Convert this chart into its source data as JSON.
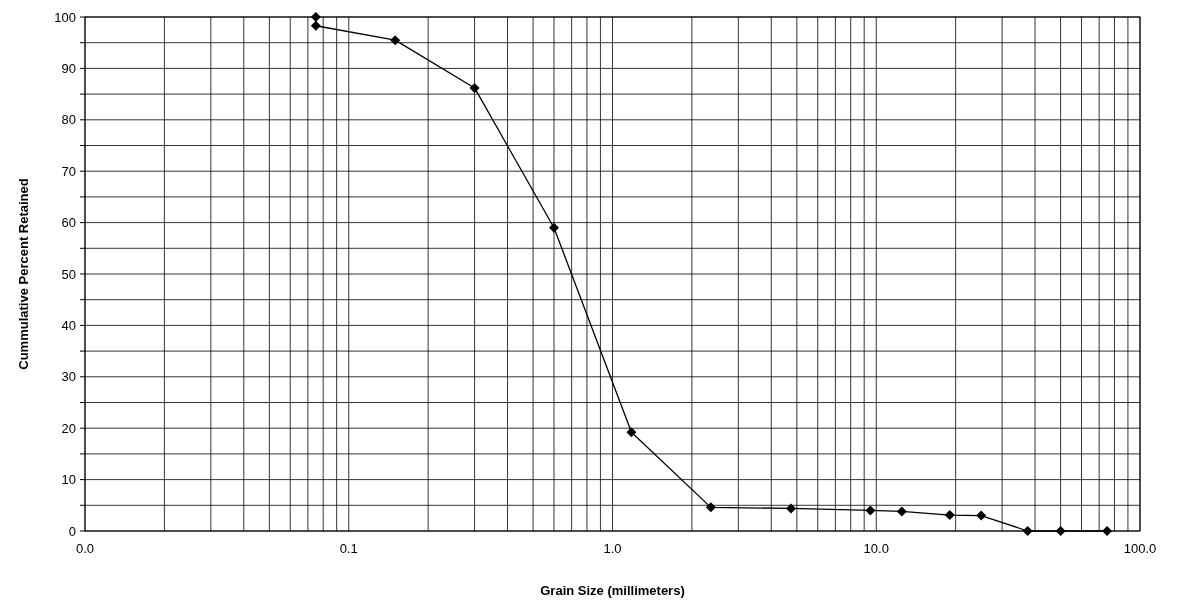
{
  "chart_data": {
    "type": "line",
    "xlabel": "Grain Size (millimeters)",
    "ylabel": "Cummulative Percent Retained",
    "log": "x",
    "grid": true,
    "marker": "diamond",
    "line_style": "solid",
    "xlim": [
      0.01,
      100
    ],
    "ylim": [
      0,
      100
    ],
    "xticks": [
      {
        "value": 0.01,
        "label": "0.0"
      },
      {
        "value": 0.02,
        "label": null
      },
      {
        "value": 0.03,
        "label": null
      },
      {
        "value": 0.04,
        "label": null
      },
      {
        "value": 0.05,
        "label": null
      },
      {
        "value": 0.06,
        "label": null
      },
      {
        "value": 0.07,
        "label": null
      },
      {
        "value": 0.08,
        "label": null
      },
      {
        "value": 0.09,
        "label": null
      },
      {
        "value": 0.1,
        "label": "0.1"
      },
      {
        "value": 0.2,
        "label": null
      },
      {
        "value": 0.3,
        "label": null
      },
      {
        "value": 0.4,
        "label": null
      },
      {
        "value": 0.5,
        "label": null
      },
      {
        "value": 0.6,
        "label": null
      },
      {
        "value": 0.7,
        "label": null
      },
      {
        "value": 0.8,
        "label": null
      },
      {
        "value": 0.9,
        "label": null
      },
      {
        "value": 1,
        "label": "1.0"
      },
      {
        "value": 2,
        "label": null
      },
      {
        "value": 3,
        "label": null
      },
      {
        "value": 4,
        "label": null
      },
      {
        "value": 5,
        "label": null
      },
      {
        "value": 6,
        "label": null
      },
      {
        "value": 7,
        "label": null
      },
      {
        "value": 8,
        "label": null
      },
      {
        "value": 9,
        "label": null
      },
      {
        "value": 10,
        "label": "10.0"
      },
      {
        "value": 20,
        "label": null
      },
      {
        "value": 30,
        "label": null
      },
      {
        "value": 40,
        "label": null
      },
      {
        "value": 50,
        "label": null
      },
      {
        "value": 60,
        "label": null
      },
      {
        "value": 70,
        "label": null
      },
      {
        "value": 80,
        "label": null
      },
      {
        "value": 90,
        "label": null
      },
      {
        "value": 100,
        "label": "100.0"
      }
    ],
    "yticks": [
      0,
      {
        "value": 5,
        "label": null
      },
      10,
      {
        "value": 15,
        "label": null
      },
      20,
      {
        "value": 25,
        "label": null
      },
      30,
      {
        "value": 35,
        "label": null
      },
      40,
      {
        "value": 45,
        "label": null
      },
      50,
      {
        "value": 55,
        "label": null
      },
      60,
      {
        "value": 65,
        "label": null
      },
      70,
      {
        "value": 75,
        "label": null
      },
      80,
      {
        "value": 85,
        "label": null
      },
      90,
      {
        "value": 95,
        "label": null
      },
      100
    ],
    "series": [
      {
        "color": "#000000",
        "x": [
          0.075,
          0.075,
          0.15,
          0.3,
          0.6,
          1.18,
          2.36,
          4.75,
          9.5,
          12.5,
          19,
          25,
          37.5,
          50,
          75
        ],
        "values": [
          100,
          98.3,
          95.5,
          86.2,
          59,
          19.2,
          4.6,
          4.4,
          4.0,
          3.8,
          3.1,
          3.0,
          0,
          0,
          0
        ]
      }
    ]
  }
}
